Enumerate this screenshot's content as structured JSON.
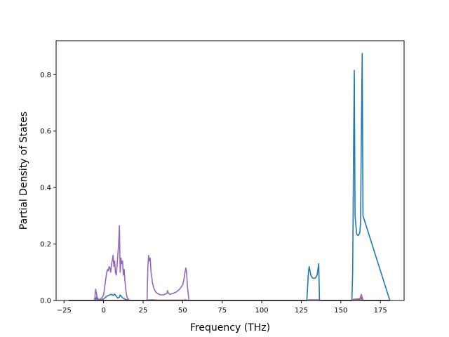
{
  "chart_data": {
    "type": "line",
    "title": "",
    "xlabel": "Frequency (THz)",
    "ylabel": "Partial Density of States",
    "xlim": [
      -30,
      190
    ],
    "ylim": [
      0,
      0.92
    ],
    "xticks": [
      -25,
      0,
      25,
      50,
      75,
      100,
      125,
      150,
      175
    ],
    "yticks": [
      0.0,
      0.2,
      0.4,
      0.6,
      0.8
    ],
    "xtick_labels": [
      "−25",
      "0",
      "25",
      "50",
      "75",
      "100",
      "125",
      "150",
      "175"
    ],
    "ytick_labels": [
      "0.0",
      "0.2",
      "0.4",
      "0.6",
      "0.8"
    ],
    "grid": false,
    "legend": "none",
    "series": [
      {
        "color": "#1f77b4",
        "x": [
          -22,
          -5.5,
          -5,
          -4.5,
          -4,
          -3,
          -1,
          0,
          1,
          2,
          3,
          4,
          5,
          6,
          7,
          8,
          9,
          10,
          10.5,
          11,
          12,
          13,
          14,
          16,
          27,
          28,
          29,
          31,
          33,
          50,
          52,
          53,
          54,
          128.5,
          129,
          129.5,
          130,
          131,
          132,
          133,
          134,
          135,
          135.5,
          136,
          136.5,
          157,
          157.5,
          158,
          158.5,
          159,
          160,
          161,
          162,
          162.5,
          163,
          163.5,
          164,
          181
        ],
        "y": [
          0,
          0,
          0.005,
          0.012,
          0.004,
          0.001,
          0.003,
          0.006,
          0.01,
          0.015,
          0.018,
          0.02,
          0.022,
          0.018,
          0.023,
          0.015,
          0.009,
          0.012,
          0.02,
          0.016,
          0.01,
          0.006,
          0.004,
          0,
          0,
          0.001,
          0.002,
          0.002,
          0.001,
          0.001,
          0.002,
          0.001,
          0,
          0,
          0.05,
          0.1,
          0.12,
          0.09,
          0.08,
          0.078,
          0.08,
          0.09,
          0.11,
          0.13,
          0,
          0,
          0.1,
          0.5,
          0.815,
          0.3,
          0.235,
          0.23,
          0.24,
          0.28,
          0.6,
          0.875,
          0.3,
          0
        ]
      },
      {
        "color": "#2ca02c",
        "x": [
          -22,
          128,
          130,
          136,
          138,
          157,
          158,
          163,
          164,
          181
        ],
        "y": [
          0,
          0,
          0.001,
          0.001,
          0,
          0,
          0.002,
          0.002,
          0,
          0
        ]
      },
      {
        "color": "#d62728",
        "x": [
          -22,
          128,
          130,
          136,
          138,
          157,
          158,
          160,
          162,
          163,
          164,
          181
        ],
        "y": [
          0,
          0,
          0.002,
          0.002,
          0,
          0,
          0.004,
          0.005,
          0.006,
          0.01,
          0,
          0
        ]
      },
      {
        "color": "#9467bd",
        "x": [
          -22,
          -6,
          -5.5,
          -5,
          -4.5,
          -4,
          -3,
          -2,
          -1,
          0,
          0.5,
          1,
          1.5,
          2,
          2.5,
          3,
          3.5,
          4,
          4.5,
          5,
          5.5,
          6,
          6.5,
          7,
          7.5,
          8,
          8.5,
          9,
          9.5,
          10,
          10.5,
          11,
          11.5,
          12,
          12.5,
          13,
          13.5,
          14,
          14.5,
          15,
          15.5,
          16,
          16.5,
          17,
          27.5,
          28,
          28.5,
          29,
          29.5,
          30,
          31,
          32,
          33,
          34,
          36,
          38,
          40,
          40.5,
          41,
          42,
          44,
          46,
          48,
          50,
          51,
          51.5,
          52,
          52.5,
          53,
          54,
          128,
          130,
          132,
          134,
          136,
          138,
          157,
          158,
          160,
          162,
          163,
          164,
          181
        ],
        "y": [
          0,
          0,
          0.01,
          0.04,
          0.025,
          0.01,
          0.003,
          0.005,
          0.01,
          0.02,
          0.04,
          0.06,
          0.08,
          0.1,
          0.11,
          0.105,
          0.12,
          0.115,
          0.1,
          0.13,
          0.14,
          0.16,
          0.12,
          0.14,
          0.1,
          0.09,
          0.12,
          0.16,
          0.2,
          0.265,
          0.1,
          0.15,
          0.13,
          0.14,
          0.09,
          0.11,
          0.07,
          0.04,
          0.02,
          0.01,
          0.005,
          0.003,
          0.001,
          0,
          0,
          0.12,
          0.16,
          0.14,
          0.15,
          0.1,
          0.06,
          0.04,
          0.03,
          0.025,
          0.02,
          0.02,
          0.025,
          0.035,
          0.025,
          0.022,
          0.025,
          0.03,
          0.04,
          0.055,
          0.08,
          0.1,
          0.115,
          0.1,
          0.05,
          0,
          0,
          0.002,
          0.002,
          0.002,
          0.002,
          0,
          0,
          0.003,
          0.004,
          0.006,
          0.022,
          0,
          0
        ]
      }
    ]
  }
}
